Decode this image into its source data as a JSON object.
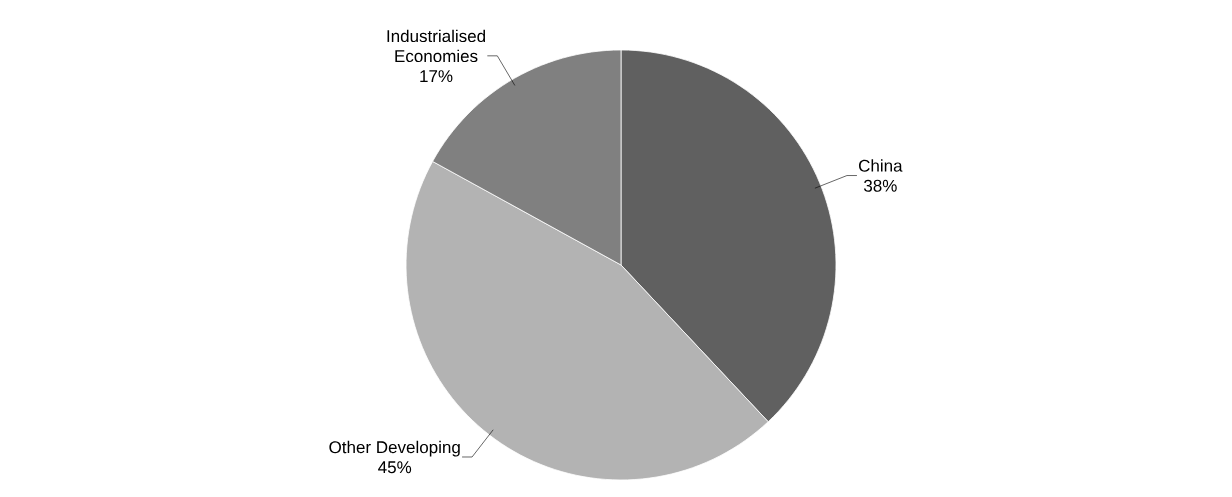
{
  "chart_data": {
    "type": "pie",
    "categories": [
      "China",
      "Other Developing",
      "Industrialised Economies"
    ],
    "values": [
      38,
      45,
      17
    ],
    "colors": [
      "#606060",
      "#b3b3b3",
      "#808080"
    ],
    "value_labels": [
      "38%",
      "45%",
      "17%"
    ]
  }
}
